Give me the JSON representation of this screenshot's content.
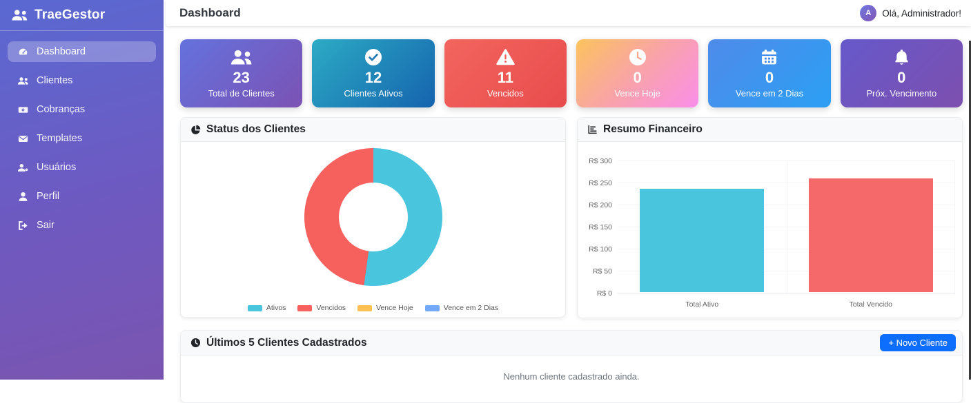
{
  "app": {
    "name": "TraeGestor"
  },
  "sidebar": {
    "logo_text": "TraeGestor",
    "items": [
      {
        "label": "Dashboard",
        "icon": "gauge-icon",
        "active": true
      },
      {
        "label": "Clientes",
        "icon": "users-icon",
        "active": false
      },
      {
        "label": "Cobranças",
        "icon": "money-icon",
        "active": false
      },
      {
        "label": "Templates",
        "icon": "envelope-icon",
        "active": false
      },
      {
        "label": "Usuários",
        "icon": "user-gear-icon",
        "active": false
      },
      {
        "label": "Perfil",
        "icon": "user-icon",
        "active": false
      },
      {
        "label": "Sair",
        "icon": "logout-icon",
        "active": false
      }
    ]
  },
  "header": {
    "title": "Dashboard",
    "greeting": "Olá, Administrador!",
    "avatar_initial": "A"
  },
  "stats": [
    {
      "value": "23",
      "label": "Total de Clientes",
      "icon": "users-big-icon",
      "gradient": [
        "#6472dd",
        "#7b52b4"
      ]
    },
    {
      "value": "12",
      "label": "Clientes Ativos",
      "icon": "check-circle-icon",
      "gradient": [
        "#2cabc4",
        "#1563ae"
      ]
    },
    {
      "value": "11",
      "label": "Vencidos",
      "icon": "warning-triangle-icon",
      "gradient": [
        "#f3655f",
        "#e84c4c"
      ]
    },
    {
      "value": "0",
      "label": "Vence Hoje",
      "icon": "clock-icon",
      "gradient": [
        "#fcc35c",
        "#f9a3a9",
        "#fa8ee9"
      ]
    },
    {
      "value": "0",
      "label": "Vence em 2 Dias",
      "icon": "calendar-icon",
      "gradient": [
        "#4f8bea",
        "#2b9ff4"
      ]
    },
    {
      "value": "0",
      "label": "Próx. Vencimento",
      "icon": "bell-icon",
      "gradient": [
        "#6659cb",
        "#7d4fae"
      ]
    }
  ],
  "panels": {
    "status_title": "Status dos Clientes",
    "finance_title": "Resumo Financeiro",
    "recent_title": "Últimos 5 Clientes Cadastrados",
    "new_client_button": "+ Novo Cliente",
    "empty_message": "Nenhum cliente cadastrado ainda."
  },
  "chart_data": [
    {
      "type": "pie",
      "title": "Status dos Clientes",
      "labels": [
        "Ativos",
        "Vencidos",
        "Vence Hoje",
        "Vence em 2 Dias"
      ],
      "values": [
        12,
        11,
        0,
        0
      ],
      "colors": [
        "#4AC5DE",
        "#F6615E",
        "#FCC154",
        "#74A8F8"
      ],
      "hole": 0.5,
      "legend_position": "bottom"
    },
    {
      "type": "bar",
      "title": "Resumo Financeiro",
      "categories": [
        "Total Ativo",
        "Total Vencido"
      ],
      "values": [
        235,
        258
      ],
      "colors": [
        "#4AC5DE",
        "#F6696A"
      ],
      "ylim": [
        0,
        300
      ],
      "ytick_step": 50,
      "ytick_prefix": "R$ ",
      "grid": true,
      "legend_position": "none"
    }
  ],
  "colors": {
    "primary_button": "#0d6efd",
    "sidebar_top": "#5a69d2",
    "sidebar_bottom": "#7a55b0",
    "panel_header_bg": "#f8f9fa"
  }
}
